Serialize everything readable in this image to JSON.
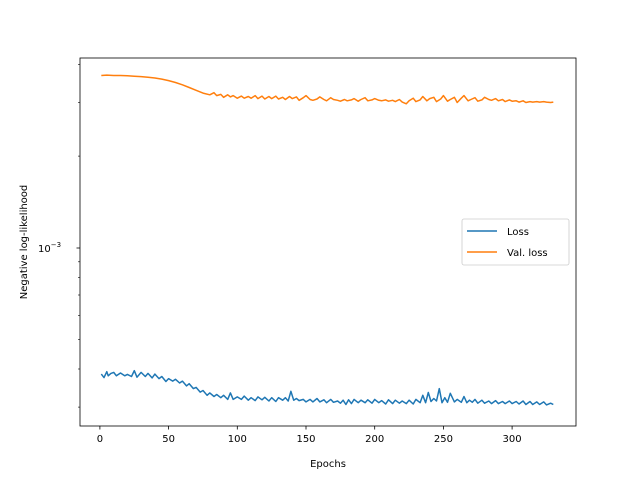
{
  "chart_data": {
    "type": "line",
    "title": "",
    "xlabel": "Epochs",
    "ylabel": "Negative log-likelihood",
    "xlim": [
      -14.5,
      346.5
    ],
    "ylim": [
      0.00026,
      0.0042
    ],
    "yscale": "log",
    "grid": false,
    "legend_position": "center-right",
    "x_ticks": [
      0,
      50,
      100,
      150,
      200,
      250,
      300
    ],
    "x_tick_labels": [
      "0",
      "50",
      "100",
      "150",
      "200",
      "250",
      "300"
    ],
    "y_ticks": [
      0.001
    ],
    "y_tick_labels_text": [
      "10",
      "−3"
    ],
    "series": [
      {
        "name": "Loss",
        "color": "#1f77b4",
        "x": [
          1,
          3,
          5,
          6,
          8,
          10,
          12,
          15,
          18,
          20,
          23,
          25,
          27,
          30,
          33,
          35,
          38,
          40,
          43,
          45,
          48,
          50,
          53,
          55,
          58,
          60,
          63,
          65,
          68,
          70,
          73,
          75,
          78,
          80,
          83,
          85,
          88,
          90,
          93,
          95,
          97,
          100,
          103,
          105,
          108,
          110,
          113,
          115,
          118,
          120,
          123,
          125,
          128,
          130,
          133,
          135,
          137,
          139,
          141,
          143,
          145,
          148,
          150,
          153,
          155,
          158,
          160,
          163,
          165,
          168,
          170,
          173,
          175,
          177,
          179,
          181,
          183,
          185,
          188,
          190,
          193,
          195,
          198,
          200,
          203,
          205,
          208,
          210,
          213,
          215,
          218,
          220,
          223,
          225,
          228,
          230,
          233,
          235,
          237,
          239,
          241,
          243,
          245,
          247,
          249,
          251,
          253,
          255,
          258,
          260,
          263,
          265,
          267,
          269,
          271,
          273,
          275,
          278,
          280,
          283,
          285,
          288,
          290,
          293,
          295,
          298,
          300,
          303,
          305,
          308,
          310,
          313,
          315,
          318,
          320,
          323,
          325,
          328,
          330
        ],
        "y": [
          0.000385,
          0.000375,
          0.000392,
          0.00038,
          0.000387,
          0.00039,
          0.00038,
          0.000388,
          0.00038,
          0.000384,
          0.000378,
          0.000395,
          0.000376,
          0.00039,
          0.000378,
          0.000387,
          0.000374,
          0.000385,
          0.000372,
          0.000378,
          0.000364,
          0.000372,
          0.000365,
          0.00037,
          0.00036,
          0.000365,
          0.000352,
          0.000358,
          0.000345,
          0.000348,
          0.000336,
          0.00034,
          0.000328,
          0.000334,
          0.000325,
          0.00033,
          0.000322,
          0.000328,
          0.000318,
          0.000334,
          0.000318,
          0.000324,
          0.000318,
          0.000326,
          0.000316,
          0.000322,
          0.000315,
          0.000324,
          0.000317,
          0.000323,
          0.000314,
          0.000322,
          0.000313,
          0.000322,
          0.000316,
          0.000322,
          0.000314,
          0.000338,
          0.000316,
          0.00032,
          0.000315,
          0.000318,
          0.000312,
          0.000318,
          0.000312,
          0.00032,
          0.000312,
          0.000317,
          0.00031,
          0.000318,
          0.000311,
          0.000314,
          0.000309,
          0.000316,
          0.000306,
          0.000317,
          0.000308,
          0.000318,
          0.00031,
          0.000316,
          0.00031,
          0.000317,
          0.000309,
          0.000318,
          0.00031,
          0.000315,
          0.000307,
          0.000317,
          0.000308,
          0.000316,
          0.000309,
          0.000314,
          0.000308,
          0.000316,
          0.000307,
          0.000318,
          0.00031,
          0.000328,
          0.00031,
          0.000335,
          0.000313,
          0.00032,
          0.000314,
          0.000345,
          0.00031,
          0.000322,
          0.000311,
          0.000333,
          0.000312,
          0.000318,
          0.000311,
          0.000325,
          0.00031,
          0.000316,
          0.000311,
          0.000318,
          0.000309,
          0.000316,
          0.000309,
          0.000314,
          0.000308,
          0.000315,
          0.000308,
          0.000313,
          0.000308,
          0.000314,
          0.000308,
          0.000313,
          0.000307,
          0.000314,
          0.000306,
          0.000313,
          0.000306,
          0.000312,
          0.000306,
          0.000312,
          0.000305,
          0.000309,
          0.000306
        ]
      },
      {
        "name": "Val. loss",
        "color": "#ff7f0e",
        "x": [
          1,
          5,
          10,
          15,
          20,
          25,
          30,
          35,
          40,
          45,
          50,
          55,
          60,
          65,
          70,
          75,
          80,
          83,
          85,
          88,
          90,
          93,
          95,
          97,
          100,
          103,
          105,
          108,
          110,
          113,
          115,
          118,
          120,
          123,
          125,
          128,
          130,
          133,
          135,
          138,
          140,
          143,
          145,
          148,
          150,
          153,
          155,
          158,
          160,
          163,
          165,
          168,
          170,
          173,
          175,
          178,
          180,
          183,
          185,
          188,
          190,
          193,
          195,
          198,
          200,
          203,
          205,
          208,
          210,
          213,
          215,
          218,
          220,
          223,
          225,
          228,
          230,
          233,
          235,
          238,
          240,
          243,
          245,
          248,
          250,
          253,
          255,
          258,
          260,
          263,
          265,
          268,
          270,
          273,
          275,
          278,
          280,
          283,
          285,
          288,
          290,
          293,
          295,
          298,
          300,
          303,
          305,
          308,
          310,
          313,
          315,
          318,
          320,
          323,
          325,
          328,
          330
        ],
        "y": [
          0.00368,
          0.00369,
          0.00368,
          0.00368,
          0.00367,
          0.00366,
          0.00365,
          0.00363,
          0.00361,
          0.00358,
          0.00354,
          0.00349,
          0.00343,
          0.00336,
          0.00329,
          0.00322,
          0.00318,
          0.00323,
          0.00316,
          0.00319,
          0.00312,
          0.00318,
          0.00313,
          0.00316,
          0.0031,
          0.00315,
          0.0031,
          0.00314,
          0.0031,
          0.00316,
          0.00309,
          0.00315,
          0.00308,
          0.00314,
          0.00309,
          0.00315,
          0.00308,
          0.00312,
          0.00307,
          0.00314,
          0.00309,
          0.00313,
          0.00305,
          0.00311,
          0.00316,
          0.00307,
          0.00305,
          0.00308,
          0.00313,
          0.00307,
          0.00304,
          0.00311,
          0.00307,
          0.00305,
          0.00303,
          0.00307,
          0.00304,
          0.00306,
          0.00309,
          0.00303,
          0.00307,
          0.00311,
          0.00304,
          0.00306,
          0.00309,
          0.00305,
          0.00304,
          0.00306,
          0.00303,
          0.00305,
          0.00302,
          0.00307,
          0.00301,
          0.00297,
          0.00304,
          0.0031,
          0.00302,
          0.00306,
          0.00314,
          0.00304,
          0.00309,
          0.00312,
          0.00302,
          0.00308,
          0.00316,
          0.00303,
          0.00307,
          0.00312,
          0.003,
          0.0031,
          0.00316,
          0.00304,
          0.00307,
          0.00311,
          0.00303,
          0.00306,
          0.00312,
          0.00307,
          0.00305,
          0.00309,
          0.00304,
          0.00307,
          0.00302,
          0.00306,
          0.00303,
          0.00304,
          0.00301,
          0.00304,
          0.003,
          0.00302,
          0.00301,
          0.00302,
          0.00301,
          0.00302,
          0.00301,
          0.003,
          0.00301
        ]
      }
    ]
  }
}
